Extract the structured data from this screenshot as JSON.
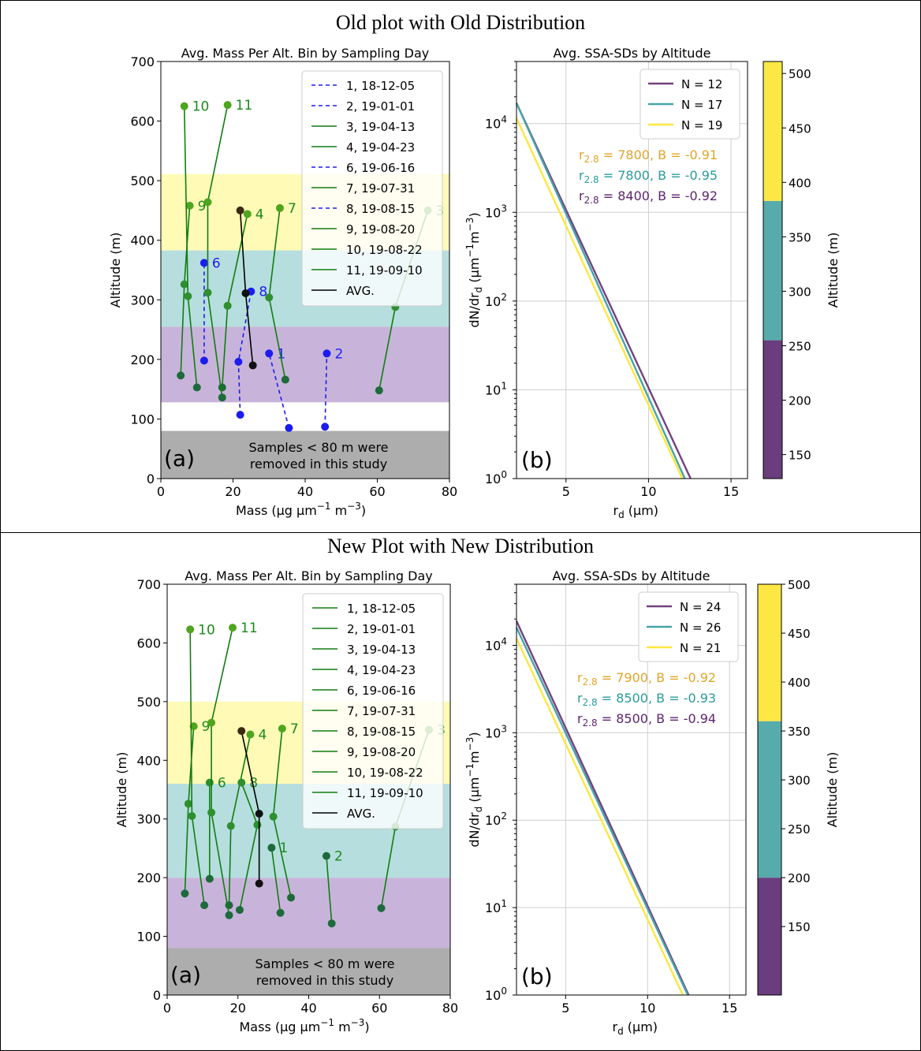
{
  "panels": [
    {
      "title": "Old plot with Old Distribution",
      "left": {
        "title": "Avg. Mass Per Alt. Bin by Sampling Day",
        "panel_label": "(a)",
        "note": [
          "Samples < 80 m were",
          "removed in this study"
        ],
        "ylabel": "Altitude (m)",
        "xlabel": "Mass (µg µm⁻¹ m⁻³)"
      },
      "right": {
        "title": "Avg. SSA-SDs by Altitude",
        "panel_label": "(b)",
        "ylabel": "dN/dr_d (µm⁻¹m⁻³)",
        "xlabel": "r_d (µm)",
        "colorbar_label": "Altitude (m)"
      }
    },
    {
      "title": "New Plot with New Distribution",
      "left": {
        "title": "Avg. Mass Per Alt. Bin by Sampling Day",
        "panel_label": "(a)",
        "note": [
          "Samples < 80 m were",
          "removed in this study"
        ],
        "ylabel": "Altitude (m)",
        "xlabel": "Mass (µg µm⁻¹ m⁻³)"
      },
      "right": {
        "title": "Avg. SSA-SDs by Altitude",
        "panel_label": "(b)",
        "ylabel": "dN/dr_d (µm⁻¹m⁻³)",
        "xlabel": "r_d (µm)",
        "colorbar_label": "Altitude (m)"
      }
    }
  ],
  "chart_data": [
    {
      "type": "line",
      "title": "Avg. Mass Per Alt. Bin by Sampling Day",
      "xlabel": "Mass (µg µm⁻¹ m⁻³)",
      "ylabel": "Altitude (m)",
      "xlim": [
        0,
        80
      ],
      "ylim": [
        0,
        700
      ],
      "xticks": [
        0,
        20,
        40,
        60,
        80
      ],
      "yticks": [
        0,
        100,
        200,
        300,
        400,
        500,
        600,
        700
      ],
      "legend_position": "top-right",
      "bands": [
        {
          "from": 0,
          "to": 80,
          "color": "#a9a9a9"
        },
        {
          "from": 128,
          "to": 255,
          "color": "#c5b0d8"
        },
        {
          "from": 255,
          "to": 383,
          "color": "#b2dcdc"
        },
        {
          "from": 383,
          "to": 511,
          "color": "#fffab2"
        }
      ],
      "series": [
        {
          "name": "1, 18-12-05",
          "style": "dashed",
          "color": "#1c1cf0",
          "label": "1",
          "points": [
            [
              35.5,
              85
            ],
            [
              30,
              210
            ]
          ]
        },
        {
          "name": "2, 19-01-01",
          "style": "dashed",
          "color": "#1c1cf0",
          "label": "2",
          "points": [
            [
              45.5,
              87
            ],
            [
              46,
              210
            ]
          ]
        },
        {
          "name": "3, 19-04-13",
          "style": "solid",
          "color": "#117d11",
          "label": "3",
          "points": [
            [
              60.5,
              148
            ],
            [
              65,
              288
            ],
            [
              74,
              450
            ]
          ]
        },
        {
          "name": "4, 19-04-23",
          "style": "solid",
          "color": "#117d11",
          "label": "4",
          "points": [
            [
              17,
              153
            ],
            [
              18.5,
              290
            ],
            [
              24,
              444
            ]
          ]
        },
        {
          "name": "6, 19-06-16",
          "style": "dashed",
          "color": "#1c1cf0",
          "label": "6",
          "points": [
            [
              12,
              198
            ],
            [
              12,
              362
            ]
          ]
        },
        {
          "name": "7, 19-07-31",
          "style": "solid",
          "color": "#117d11",
          "label": "7",
          "points": [
            [
              34.5,
              166
            ],
            [
              30,
              304
            ],
            [
              33,
              454
            ]
          ]
        },
        {
          "name": "8, 19-08-15",
          "style": "dashed",
          "color": "#1c1cf0",
          "label": "8",
          "points": [
            [
              22,
              107
            ],
            [
              21.5,
              196
            ],
            [
              25,
              314
            ]
          ]
        },
        {
          "name": "9, 19-08-20",
          "style": "solid",
          "color": "#117d11",
          "label": "9",
          "points": [
            [
              5.5,
              173
            ],
            [
              6.5,
              326
            ],
            [
              8,
              458
            ]
          ]
        },
        {
          "name": "10, 19-08-22",
          "style": "solid",
          "color": "#117d11",
          "label": "10",
          "points": [
            [
              10,
              153
            ],
            [
              7.5,
              306
            ],
            [
              6.5,
              625
            ]
          ]
        },
        {
          "name": "11, 19-09-10",
          "style": "solid",
          "color": "#117d11",
          "label": "11",
          "points": [
            [
              17,
              136
            ],
            [
              13,
              312
            ],
            [
              13,
              464
            ],
            [
              18.5,
              627
            ]
          ]
        },
        {
          "name": "AVG.",
          "style": "solid",
          "color": "#000000",
          "label": "",
          "points": [
            [
              25.5,
              190
            ],
            [
              23.5,
              311
            ],
            [
              22,
              450
            ]
          ]
        }
      ]
    },
    {
      "type": "line",
      "title": "Avg. SSA-SDs by Altitude",
      "xlabel": "r_d (µm)",
      "ylabel": "dN/dr_d (µm⁻¹m⁻³)",
      "xlim": [
        2,
        16
      ],
      "yscale": "log",
      "ylim": [
        1,
        50000
      ],
      "xticks": [
        5,
        10,
        15
      ],
      "yticks": [
        "10^0",
        "10^1",
        "10^2",
        "10^3",
        "10^4"
      ],
      "grid": true,
      "legend_position": "top-right",
      "series": [
        {
          "name": "N = 12",
          "color": "#74417f",
          "x": [
            2,
            12.55
          ],
          "y": [
            17000,
            1
          ]
        },
        {
          "name": "N = 17",
          "color": "#47a4a6",
          "x": [
            2,
            12.2
          ],
          "y": [
            17000,
            1
          ]
        },
        {
          "name": "N = 19",
          "color": "#fde73f",
          "x": [
            2,
            12.05
          ],
          "y": [
            11500,
            1
          ]
        }
      ],
      "annotations": [
        {
          "subscript": "2.8",
          "value": "7800",
          "B": "-0.91",
          "color": "#e0a52a"
        },
        {
          "subscript": "2.8",
          "value": "7800",
          "B": "-0.95",
          "color": "#2a9c9c"
        },
        {
          "subscript": "2.8",
          "value": "8400",
          "B": "-0.92",
          "color": "#5e2470"
        }
      ],
      "colorbar": {
        "label": "Altitude (m)",
        "range": [
          128,
          511
        ],
        "ticks": [
          150,
          200,
          250,
          300,
          350,
          400,
          450,
          500
        ],
        "bands": [
          {
            "from": 128,
            "to": 255,
            "color": "#6a3d7e"
          },
          {
            "from": 255,
            "to": 383,
            "color": "#58abab"
          },
          {
            "from": 383,
            "to": 511,
            "color": "#fde744"
          }
        ]
      }
    },
    {
      "type": "line",
      "title": "Avg. Mass Per Alt. Bin by Sampling Day",
      "xlabel": "Mass (µg µm⁻¹ m⁻³)",
      "ylabel": "Altitude (m)",
      "xlim": [
        0,
        80
      ],
      "ylim": [
        0,
        700
      ],
      "xticks": [
        0,
        20,
        40,
        60,
        80
      ],
      "yticks": [
        0,
        100,
        200,
        300,
        400,
        500,
        600,
        700
      ],
      "legend_position": "top-right",
      "bands": [
        {
          "from": 0,
          "to": 80,
          "color": "#a9a9a9"
        },
        {
          "from": 80,
          "to": 200,
          "color": "#c5b0d8"
        },
        {
          "from": 200,
          "to": 360,
          "color": "#b2dcdc"
        },
        {
          "from": 360,
          "to": 500,
          "color": "#fffab2"
        }
      ],
      "series": [
        {
          "name": "1, 18-12-05",
          "style": "solid",
          "color": "#117d11",
          "label": "1",
          "points": [
            [
              32,
              140
            ],
            [
              29.5,
              251
            ]
          ]
        },
        {
          "name": "2, 19-01-01",
          "style": "solid",
          "color": "#117d11",
          "label": "2",
          "points": [
            [
              46.5,
              122
            ],
            [
              45,
              237
            ]
          ]
        },
        {
          "name": "3, 19-04-13",
          "style": "solid",
          "color": "#117d11",
          "label": "3",
          "points": [
            [
              60.5,
              148
            ],
            [
              64.5,
              287
            ],
            [
              74,
              452
            ]
          ]
        },
        {
          "name": "4, 19-04-23",
          "style": "solid",
          "color": "#117d11",
          "label": "4",
          "points": [
            [
              17.5,
              153
            ],
            [
              18,
              288
            ],
            [
              23.5,
              444
            ]
          ]
        },
        {
          "name": "6, 19-06-16",
          "style": "solid",
          "color": "#117d11",
          "label": "6",
          "points": [
            [
              12,
              198
            ],
            [
              12,
              362
            ]
          ]
        },
        {
          "name": "7, 19-07-31",
          "style": "solid",
          "color": "#117d11",
          "label": "7",
          "points": [
            [
              35,
              166
            ],
            [
              30,
              304
            ],
            [
              32.5,
              454
            ]
          ]
        },
        {
          "name": "8, 19-08-15",
          "style": "solid",
          "color": "#117d11",
          "label": "8",
          "points": [
            [
              20.5,
              145
            ],
            [
              25.5,
              290
            ],
            [
              21,
              362
            ]
          ]
        },
        {
          "name": "9, 19-08-20",
          "style": "solid",
          "color": "#117d11",
          "label": "9",
          "points": [
            [
              5,
              173
            ],
            [
              6,
              326
            ],
            [
              7.5,
              458
            ]
          ]
        },
        {
          "name": "10, 19-08-22",
          "style": "solid",
          "color": "#117d11",
          "label": "10",
          "points": [
            [
              10.5,
              153
            ],
            [
              7,
              305
            ],
            [
              6.5,
              623
            ]
          ]
        },
        {
          "name": "11, 19-09-10",
          "style": "solid",
          "color": "#117d11",
          "label": "11",
          "points": [
            [
              17.5,
              136
            ],
            [
              12.5,
              311
            ],
            [
              12.5,
              464
            ],
            [
              18.5,
              626
            ]
          ]
        },
        {
          "name": "AVG.",
          "style": "solid",
          "color": "#000000",
          "label": "",
          "points": [
            [
              26,
              190
            ],
            [
              26,
              309
            ],
            [
              21,
              450
            ]
          ]
        }
      ]
    },
    {
      "type": "line",
      "title": "Avg. SSA-SDs by Altitude",
      "xlabel": "r_d (µm)",
      "ylabel": "dN/dr_d (µm⁻¹m⁻³)",
      "xlim": [
        2,
        16
      ],
      "yscale": "log",
      "ylim": [
        1,
        50000
      ],
      "xticks": [
        5,
        10,
        15
      ],
      "yticks": [
        "10^0",
        "10^1",
        "10^2",
        "10^3",
        "10^4"
      ],
      "grid": true,
      "legend_position": "top-right",
      "series": [
        {
          "name": "N = 24",
          "color": "#74417f",
          "x": [
            2,
            12.5
          ],
          "y": [
            19000,
            1
          ]
        },
        {
          "name": "N = 26",
          "color": "#47a4a6",
          "x": [
            2,
            12.45
          ],
          "y": [
            16000,
            1
          ]
        },
        {
          "name": "N = 21",
          "color": "#fde73f",
          "x": [
            2,
            12.15
          ],
          "y": [
            12000,
            1
          ]
        }
      ],
      "annotations": [
        {
          "subscript": "2.8",
          "value": "7900",
          "B": "-0.92",
          "color": "#e0a52a"
        },
        {
          "subscript": "2.8",
          "value": "8500",
          "B": "-0.93",
          "color": "#2a9c9c"
        },
        {
          "subscript": "2.8",
          "value": "8500",
          "B": "-0.94",
          "color": "#5e2470"
        }
      ],
      "colorbar": {
        "label": "Altitude (m)",
        "range": [
          80,
          500
        ],
        "ticks": [
          150,
          200,
          250,
          300,
          350,
          400,
          450,
          500
        ],
        "bands": [
          {
            "from": 80,
            "to": 200,
            "color": "#6a3d7e"
          },
          {
            "from": 200,
            "to": 360,
            "color": "#58abab"
          },
          {
            "from": 360,
            "to": 500,
            "color": "#fde744"
          }
        ]
      }
    }
  ]
}
